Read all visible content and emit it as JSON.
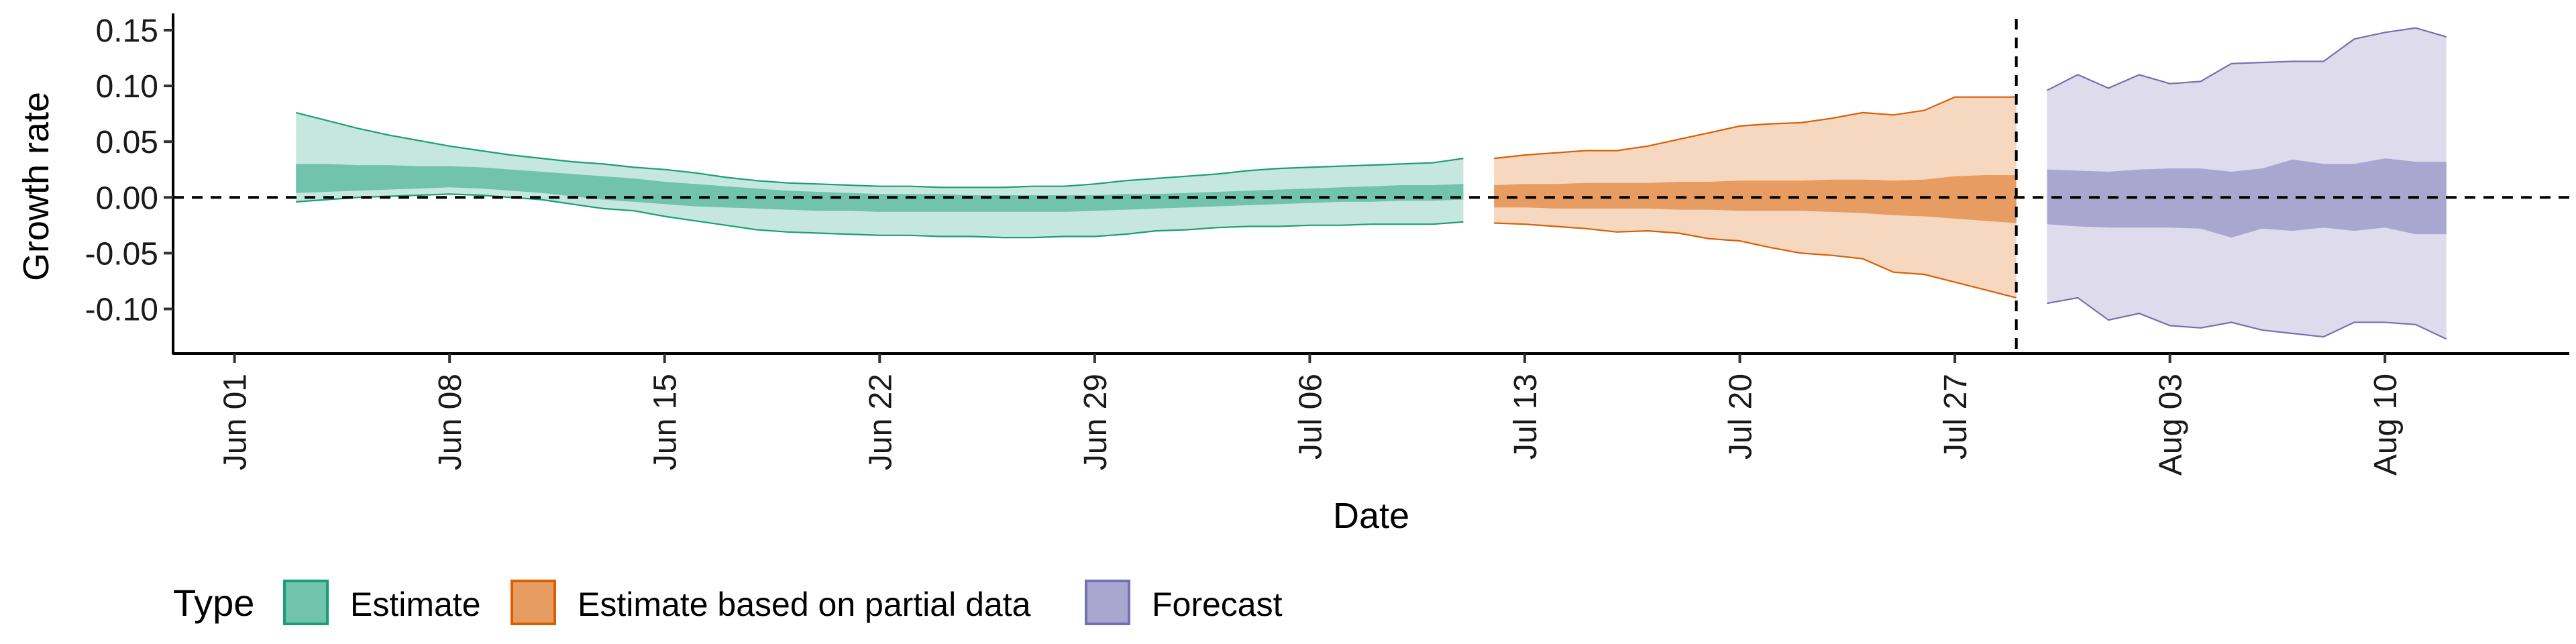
{
  "chart_data": {
    "type": "area",
    "xlabel": "Date",
    "ylabel": "Growth rate",
    "ylim": [
      -0.14,
      0.165
    ],
    "xlim": [
      "2020-05-30",
      "2020-08-16"
    ],
    "x_ticks": [
      "Jun 01",
      "Jun 08",
      "Jun 15",
      "Jun 22",
      "Jun 29",
      "Jul 06",
      "Jul 13",
      "Jul 20",
      "Jul 27",
      "Aug 03",
      "Aug 10"
    ],
    "x_tick_dates": [
      "2020-06-01",
      "2020-06-08",
      "2020-06-15",
      "2020-06-22",
      "2020-06-29",
      "2020-07-06",
      "2020-07-13",
      "2020-07-20",
      "2020-07-27",
      "2020-08-03",
      "2020-08-10"
    ],
    "y_ticks": [
      0.15,
      0.1,
      0.05,
      0.0,
      -0.05,
      -0.1
    ],
    "y_tick_labels": [
      "0.15",
      "0.10",
      "0.05",
      "0.00",
      "-0.05",
      "-0.10"
    ],
    "hline": 0,
    "vline": "2020-07-29",
    "legend": {
      "title": "Type",
      "position": "bottom",
      "items": [
        "Estimate",
        "Estimate based on partial data",
        "Forecast"
      ]
    },
    "series": [
      {
        "name": "Estimate",
        "color": "#1b9e77",
        "x": [
          "2020-06-03",
          "2020-06-04",
          "2020-06-05",
          "2020-06-06",
          "2020-06-07",
          "2020-06-08",
          "2020-06-09",
          "2020-06-10",
          "2020-06-11",
          "2020-06-12",
          "2020-06-13",
          "2020-06-14",
          "2020-06-15",
          "2020-06-16",
          "2020-06-17",
          "2020-06-18",
          "2020-06-19",
          "2020-06-20",
          "2020-06-21",
          "2020-06-22",
          "2020-06-23",
          "2020-06-24",
          "2020-06-25",
          "2020-06-26",
          "2020-06-27",
          "2020-06-28",
          "2020-06-29",
          "2020-06-30",
          "2020-07-01",
          "2020-07-02",
          "2020-07-03",
          "2020-07-04",
          "2020-07-05",
          "2020-07-06",
          "2020-07-07",
          "2020-07-08",
          "2020-07-09",
          "2020-07-10",
          "2020-07-11"
        ],
        "outer_upper": [
          0.076,
          0.069,
          0.062,
          0.056,
          0.051,
          0.046,
          0.042,
          0.038,
          0.035,
          0.032,
          0.03,
          0.027,
          0.025,
          0.022,
          0.018,
          0.015,
          0.013,
          0.012,
          0.011,
          0.01,
          0.01,
          0.009,
          0.009,
          0.009,
          0.01,
          0.01,
          0.012,
          0.015,
          0.017,
          0.019,
          0.021,
          0.024,
          0.026,
          0.027,
          0.028,
          0.029,
          0.03,
          0.031,
          0.035
        ],
        "outer_lower": [
          -0.004,
          -0.002,
          0.0,
          0.001,
          0.002,
          0.003,
          0.002,
          0.0,
          -0.002,
          -0.006,
          -0.01,
          -0.012,
          -0.017,
          -0.021,
          -0.025,
          -0.029,
          -0.031,
          -0.032,
          -0.033,
          -0.034,
          -0.034,
          -0.035,
          -0.035,
          -0.036,
          -0.036,
          -0.035,
          -0.035,
          -0.033,
          -0.03,
          -0.029,
          -0.027,
          -0.026,
          -0.026,
          -0.025,
          -0.025,
          -0.024,
          -0.024,
          -0.024,
          -0.022
        ],
        "inner_upper": [
          0.03,
          0.03,
          0.029,
          0.029,
          0.028,
          0.028,
          0.027,
          0.025,
          0.023,
          0.021,
          0.019,
          0.017,
          0.014,
          0.012,
          0.01,
          0.008,
          0.006,
          0.005,
          0.004,
          0.003,
          0.003,
          0.003,
          0.002,
          0.002,
          0.002,
          0.002,
          0.002,
          0.003,
          0.003,
          0.004,
          0.005,
          0.006,
          0.007,
          0.008,
          0.009,
          0.01,
          0.011,
          0.011,
          0.012
        ],
        "inner_lower": [
          0.004,
          0.005,
          0.006,
          0.007,
          0.008,
          0.009,
          0.008,
          0.006,
          0.004,
          0.001,
          -0.002,
          -0.004,
          -0.006,
          -0.008,
          -0.009,
          -0.01,
          -0.011,
          -0.012,
          -0.012,
          -0.013,
          -0.013,
          -0.013,
          -0.013,
          -0.013,
          -0.013,
          -0.013,
          -0.012,
          -0.011,
          -0.01,
          -0.009,
          -0.008,
          -0.007,
          -0.006,
          -0.005,
          -0.004,
          -0.004,
          -0.003,
          -0.003,
          -0.002
        ]
      },
      {
        "name": "Estimate based on partial data",
        "color": "#d95f02",
        "x": [
          "2020-07-12",
          "2020-07-13",
          "2020-07-14",
          "2020-07-15",
          "2020-07-16",
          "2020-07-17",
          "2020-07-18",
          "2020-07-19",
          "2020-07-20",
          "2020-07-21",
          "2020-07-22",
          "2020-07-23",
          "2020-07-24",
          "2020-07-25",
          "2020-07-26",
          "2020-07-27",
          "2020-07-28",
          "2020-07-29"
        ],
        "outer_upper": [
          0.035,
          0.038,
          0.04,
          0.042,
          0.042,
          0.046,
          0.052,
          0.058,
          0.064,
          0.066,
          0.067,
          0.071,
          0.076,
          0.074,
          0.078,
          0.09,
          0.09,
          0.09
        ],
        "outer_lower": [
          -0.023,
          -0.024,
          -0.026,
          -0.028,
          -0.031,
          -0.03,
          -0.032,
          -0.037,
          -0.039,
          -0.045,
          -0.05,
          -0.052,
          -0.055,
          -0.067,
          -0.069,
          -0.076,
          -0.083,
          -0.09
        ],
        "inner_upper": [
          0.011,
          0.012,
          0.012,
          0.013,
          0.013,
          0.013,
          0.014,
          0.014,
          0.015,
          0.015,
          0.015,
          0.016,
          0.016,
          0.015,
          0.016,
          0.019,
          0.02,
          0.02
        ],
        "inner_lower": [
          -0.009,
          -0.009,
          -0.01,
          -0.01,
          -0.01,
          -0.01,
          -0.011,
          -0.011,
          -0.012,
          -0.012,
          -0.012,
          -0.013,
          -0.014,
          -0.016,
          -0.017,
          -0.019,
          -0.021,
          -0.023
        ]
      },
      {
        "name": "Forecast",
        "color": "#7570b3",
        "x": [
          "2020-07-30",
          "2020-07-31",
          "2020-08-01",
          "2020-08-02",
          "2020-08-03",
          "2020-08-04",
          "2020-08-05",
          "2020-08-06",
          "2020-08-07",
          "2020-08-08",
          "2020-08-09",
          "2020-08-10",
          "2020-08-11",
          "2020-08-12"
        ],
        "outer_upper": [
          0.096,
          0.11,
          0.098,
          0.11,
          0.102,
          0.104,
          0.12,
          0.121,
          0.122,
          0.122,
          0.142,
          0.148,
          0.152,
          0.144
        ],
        "outer_lower": [
          -0.095,
          -0.09,
          -0.11,
          -0.104,
          -0.115,
          -0.117,
          -0.112,
          -0.119,
          -0.122,
          -0.125,
          -0.112,
          -0.112,
          -0.114,
          -0.127
        ],
        "inner_upper": [
          0.025,
          0.024,
          0.023,
          0.025,
          0.026,
          0.026,
          0.023,
          0.026,
          0.034,
          0.03,
          0.03,
          0.035,
          0.032,
          0.032
        ],
        "inner_lower": [
          -0.024,
          -0.026,
          -0.027,
          -0.027,
          -0.027,
          -0.028,
          -0.036,
          -0.028,
          -0.03,
          -0.027,
          -0.03,
          -0.027,
          -0.033,
          -0.033
        ]
      }
    ]
  }
}
